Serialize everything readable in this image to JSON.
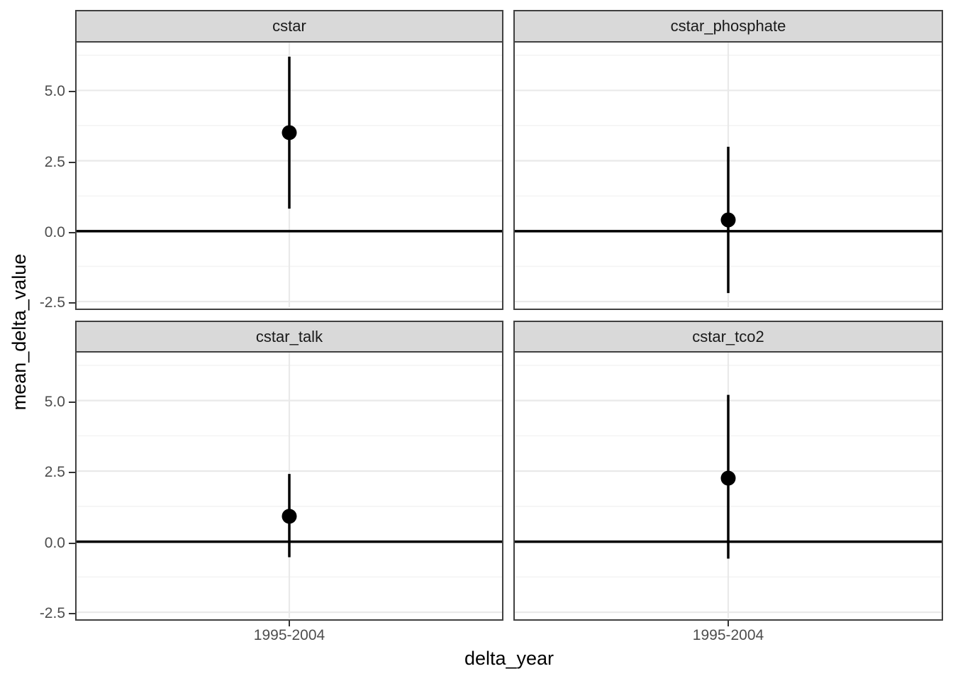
{
  "chart_data": {
    "type": "scatter",
    "subtype": "pointrange-facets",
    "title": "",
    "xlabel": "delta_year",
    "ylabel": "mean_delta_value",
    "x_categories": [
      "1995-2004"
    ],
    "ylim": [
      -2.7,
      6.7
    ],
    "y_ticks": [
      5.0,
      2.5,
      0.0,
      -2.5
    ],
    "y_tick_labels": [
      "5.0",
      "2.5",
      "0.0",
      "-2.5"
    ],
    "y_minor_ticks": [
      6.25,
      3.75,
      1.25,
      -1.25
    ],
    "reference_line_y": 0,
    "grid": "on",
    "legend_position": "none",
    "panels": [
      {
        "label": "cstar",
        "x": "1995-2004",
        "mean": 3.5,
        "lower": 0.8,
        "upper": 6.2
      },
      {
        "label": "cstar_phosphate",
        "x": "1995-2004",
        "mean": 0.4,
        "lower": -2.2,
        "upper": 3.0
      },
      {
        "label": "cstar_talk",
        "x": "1995-2004",
        "mean": 0.9,
        "lower": -0.55,
        "upper": 2.4
      },
      {
        "label": "cstar_tco2",
        "x": "1995-2004",
        "mean": 2.25,
        "lower": -0.6,
        "upper": 5.2
      }
    ],
    "colors": {
      "background": "#FFFFFF",
      "strip_fill": "#D9D9D9",
      "border": "#404040",
      "grid_major": "#E9E9E9",
      "grid_minor": "#F4F4F4",
      "tick_text": "#4D4D4D",
      "title_text": "#000000",
      "data": "#000000"
    }
  }
}
